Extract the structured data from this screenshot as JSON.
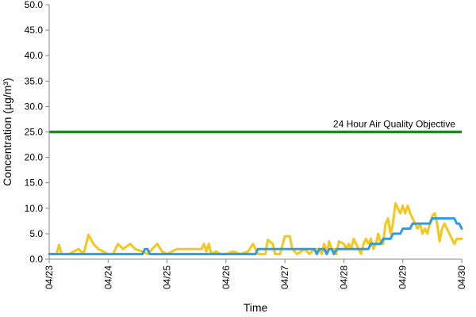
{
  "chart_data": {
    "type": "line",
    "title": "",
    "xlabel": "Time",
    "ylabel": "Concentration (µg/m³)",
    "ylim": [
      0,
      50
    ],
    "xlim": [
      "04/23",
      "04/30"
    ],
    "y_ticks": [
      "0.0",
      "5.0",
      "10.0",
      "15.0",
      "20.0",
      "25.0",
      "30.0",
      "35.0",
      "40.0",
      "45.0",
      "50.0"
    ],
    "x_ticks": [
      "04/23",
      "04/24",
      "04/25",
      "04/26",
      "04/27",
      "04/28",
      "04/29",
      "04/30"
    ],
    "grid": false,
    "reference_line": {
      "label": "24 Hour Air Quality Objective",
      "value": 25,
      "color": "#1e8a1e"
    },
    "series": [
      {
        "color": "#f5c61c",
        "points": [
          [
            "04/23",
            1
          ],
          [
            "04/23 03:00",
            1
          ],
          [
            "04/23 04:00",
            2.8
          ],
          [
            "04/23 05:00",
            1
          ],
          [
            "04/23 08:00",
            1
          ],
          [
            "04/23 10:00",
            1.5
          ],
          [
            "04/23 12:00",
            2
          ],
          [
            "04/23 14:00",
            1
          ],
          [
            "04/23 16:00",
            4.8
          ],
          [
            "04/23 18:00",
            3
          ],
          [
            "04/23 20:00",
            2
          ],
          [
            "04/23 22:00",
            1.5
          ],
          [
            "04/24",
            1
          ],
          [
            "04/24 02:00",
            1
          ],
          [
            "04/24 04:00",
            3
          ],
          [
            "04/24 06:00",
            2
          ],
          [
            "04/24 09:00",
            3
          ],
          [
            "04/24 11:00",
            2
          ],
          [
            "04/24 14:00",
            1.5
          ],
          [
            "04/24 16:00",
            1
          ],
          [
            "04/24 18:00",
            2
          ],
          [
            "04/24 20:00",
            3
          ],
          [
            "04/24 22:00",
            1.5
          ],
          [
            "04/25",
            1
          ],
          [
            "04/25 02:00",
            1.5
          ],
          [
            "04/25 04:00",
            2
          ],
          [
            "04/25 14:00",
            2
          ],
          [
            "04/25 15:00",
            3
          ],
          [
            "04/25 16:00",
            1.5
          ],
          [
            "04/25 17:00",
            3
          ],
          [
            "04/25 18:00",
            1
          ],
          [
            "04/25 20:00",
            1.5
          ],
          [
            "04/25 22:00",
            1
          ],
          [
            "04/26",
            1
          ],
          [
            "04/26 03:00",
            1.5
          ],
          [
            "04/26 06:00",
            1
          ],
          [
            "04/26 09:00",
            1.5
          ],
          [
            "04/26 11:00",
            3
          ],
          [
            "04/26 13:00",
            1
          ],
          [
            "04/26 16:00",
            1
          ],
          [
            "04/26 17:00",
            3.8
          ],
          [
            "04/26 19:00",
            3
          ],
          [
            "04/26 20:00",
            1
          ],
          [
            "04/26 22:00",
            1
          ],
          [
            "04/27 00:00",
            4.5
          ],
          [
            "04/27 02:00",
            4.5
          ],
          [
            "04/27 03:00",
            2
          ],
          [
            "04/27 05:00",
            1
          ],
          [
            "04/27 08:00",
            2
          ],
          [
            "04/27 10:00",
            1
          ],
          [
            "04/27 12:00",
            2
          ],
          [
            "04/27 14:00",
            2
          ],
          [
            "04/27 15:00",
            1
          ],
          [
            "04/27 16:00",
            3
          ],
          [
            "04/27 17:00",
            1
          ],
          [
            "04/27 18:00",
            3.5
          ],
          [
            "04/27 19:00",
            2
          ],
          [
            "04/27 20:00",
            2
          ],
          [
            "04/27 21:00",
            1
          ],
          [
            "04/27 22:00",
            3.5
          ],
          [
            "04/28",
            3
          ],
          [
            "04/28 01:00",
            2
          ],
          [
            "04/28 02:00",
            3
          ],
          [
            "04/28 03:00",
            2
          ],
          [
            "04/28 04:00",
            4
          ],
          [
            "04/28 05:00",
            3
          ],
          [
            "04/28 06:00",
            2
          ],
          [
            "04/28 07:00",
            1
          ],
          [
            "04/28 08:00",
            3
          ],
          [
            "04/28 09:00",
            4
          ],
          [
            "04/28 10:00",
            3
          ],
          [
            "04/28 11:00",
            4
          ],
          [
            "04/28 12:00",
            2
          ],
          [
            "04/28 13:00",
            3
          ],
          [
            "04/28 14:00",
            5
          ],
          [
            "04/28 15:00",
            3
          ],
          [
            "04/28 16:00",
            3
          ],
          [
            "04/28 17:00",
            7
          ],
          [
            "04/28 18:00",
            8
          ],
          [
            "04/28 19:00",
            5
          ],
          [
            "04/28 20:00",
            7
          ],
          [
            "04/28 21:00",
            11
          ],
          [
            "04/28 22:00",
            10
          ],
          [
            "04/28 23:00",
            9
          ],
          [
            "04/29",
            10.5
          ],
          [
            "04/29 01:00",
            9
          ],
          [
            "04/29 02:00",
            10.5
          ],
          [
            "04/29 03:00",
            9
          ],
          [
            "04/29 04:00",
            8
          ],
          [
            "04/29 05:00",
            7
          ],
          [
            "04/29 06:00",
            6
          ],
          [
            "04/29 07:00",
            7
          ],
          [
            "04/29 08:00",
            5
          ],
          [
            "04/29 09:00",
            6
          ],
          [
            "04/29 10:00",
            5
          ],
          [
            "04/29 11:00",
            7
          ],
          [
            "04/29 12:00",
            8.5
          ],
          [
            "04/29 13:00",
            9
          ],
          [
            "04/29 14:00",
            7
          ],
          [
            "04/29 15:00",
            3.5
          ],
          [
            "04/29 16:00",
            6
          ],
          [
            "04/29 17:00",
            7
          ],
          [
            "04/29 18:00",
            6
          ],
          [
            "04/29 19:00",
            5
          ],
          [
            "04/29 20:00",
            4
          ],
          [
            "04/29 21:00",
            3
          ],
          [
            "04/29 22:00",
            4
          ],
          [
            "04/30",
            4
          ]
        ]
      },
      {
        "color": "#2f9be0",
        "points": [
          [
            "04/23",
            1
          ],
          [
            "04/24 14:00",
            1
          ],
          [
            "04/24 15:00",
            2
          ],
          [
            "04/24 16:00",
            2
          ],
          [
            "04/24 17:00",
            1
          ],
          [
            "04/26 12:00",
            1
          ],
          [
            "04/26 13:00",
            2
          ],
          [
            "04/27 12:00",
            2
          ],
          [
            "04/27 13:00",
            1
          ],
          [
            "04/27 14:00",
            2
          ],
          [
            "04/27 16:00",
            2
          ],
          [
            "04/27 17:00",
            1
          ],
          [
            "04/27 18:00",
            2
          ],
          [
            "04/27 19:00",
            2
          ],
          [
            "04/27 20:00",
            1
          ],
          [
            "04/27 21:00",
            2
          ],
          [
            "04/28 10:00",
            2
          ],
          [
            "04/28 11:00",
            3
          ],
          [
            "04/28 15:00",
            3
          ],
          [
            "04/28 16:00",
            4
          ],
          [
            "04/28 19:00",
            4
          ],
          [
            "04/28 20:00",
            5
          ],
          [
            "04/28 23:00",
            5
          ],
          [
            "04/29",
            6
          ],
          [
            "04/29 03:00",
            6
          ],
          [
            "04/29 04:00",
            7
          ],
          [
            "04/29 11:00",
            7
          ],
          [
            "04/29 12:00",
            8
          ],
          [
            "04/29 21:00",
            8
          ],
          [
            "04/29 22:00",
            7
          ],
          [
            "04/29 23:00",
            7
          ],
          [
            "04/30",
            6
          ]
        ]
      }
    ]
  }
}
